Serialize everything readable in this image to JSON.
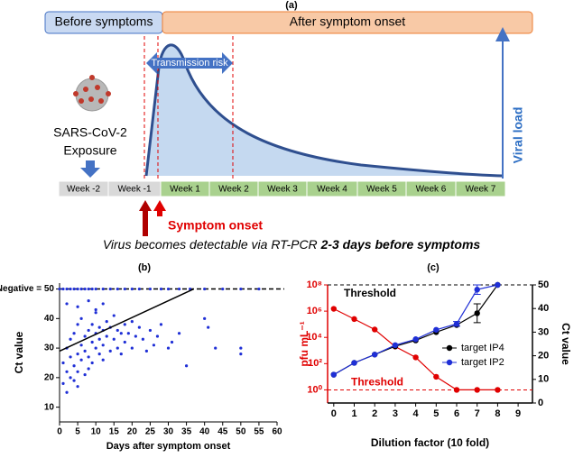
{
  "diagram": {
    "panel_label": "(a)",
    "before": "Before symptoms",
    "after": "After symptom onset",
    "transmission": "Transmission risk",
    "virus": "SARS-CoV-2",
    "exposure": "Exposure",
    "viral_load": "Viral load",
    "weeks": [
      "Week -2",
      "Week -1",
      "Week 1",
      "Week 2",
      "Week 3",
      "Week 4",
      "Week 5",
      "Week 6",
      "Week 7"
    ],
    "onset": "Symptom onset",
    "caption": "Virus becomes detectable via RT-PCR ",
    "caption_bold": "2-3 days before symptoms"
  },
  "chart_data": [
    {
      "type": "scatter",
      "title": "(b)",
      "xlabel": "Days after symptom onset",
      "ylabel": "Ct value",
      "xlim": [
        0,
        60
      ],
      "xticks": [
        0,
        5,
        10,
        15,
        20,
        25,
        30,
        35,
        40,
        45,
        50,
        55,
        60
      ],
      "ylim": [
        5,
        52
      ],
      "yticks": [
        10,
        20,
        30,
        40,
        {
          "value": 50,
          "label": "Negative = 50"
        }
      ],
      "hline": 50,
      "series": [
        {
          "color": "#1f2fd6",
          "x": [
            1,
            1,
            2,
            2,
            2,
            3,
            3,
            3,
            4,
            4,
            4,
            5,
            5,
            5,
            5,
            6,
            6,
            6,
            7,
            7,
            7,
            8,
            8,
            8,
            9,
            9,
            9,
            10,
            10,
            10,
            11,
            11,
            11,
            12,
            12,
            12,
            13,
            13,
            14,
            14,
            15,
            15,
            16,
            16,
            17,
            17,
            18,
            18,
            19,
            20,
            20,
            21,
            22,
            23,
            24,
            25,
            26,
            27,
            28,
            30,
            31,
            33,
            35,
            40,
            41,
            43,
            50,
            50,
            2,
            5,
            8,
            10,
            12
          ],
          "values": [
            18,
            25,
            22,
            30,
            15,
            27,
            20,
            33,
            24,
            35,
            19,
            28,
            38,
            22,
            17,
            31,
            26,
            40,
            29,
            34,
            21,
            36,
            27,
            23,
            32,
            38,
            25,
            35,
            30,
            42,
            33,
            28,
            37,
            36,
            31,
            26,
            34,
            39,
            29,
            37,
            33,
            41,
            30,
            36,
            35,
            28,
            32,
            38,
            35,
            30,
            39,
            34,
            37,
            33,
            29,
            36,
            31,
            34,
            38,
            30,
            32,
            35,
            24,
            40,
            37,
            30,
            30,
            28,
            45,
            44,
            46,
            43,
            45
          ]
        },
        {
          "color": "#1f2fd6",
          "x": [
            0,
            1,
            2,
            3,
            4,
            5,
            6,
            7,
            8,
            9,
            10,
            12,
            14,
            16,
            18,
            20,
            22,
            25,
            28,
            30,
            33,
            36,
            40,
            45,
            50,
            55
          ],
          "values": [
            50,
            50,
            50,
            50,
            50,
            50,
            50,
            50,
            50,
            50,
            50,
            50,
            50,
            50,
            50,
            50,
            50,
            50,
            50,
            50,
            50,
            50,
            50,
            50,
            50,
            50
          ]
        }
      ],
      "fit": {
        "color": "#000000",
        "x": [
          0,
          37
        ],
        "values": [
          29,
          50
        ]
      }
    },
    {
      "type": "dual",
      "title": "(c)",
      "xlabel": "Dilution factor (10 fold)",
      "ylabel": "pfu mL⁻¹",
      "y2label": "Ct value",
      "xlim": [
        -0.3,
        9.7
      ],
      "xticks": [
        0,
        1,
        2,
        3,
        4,
        5,
        6,
        7,
        8,
        9
      ],
      "ylim": [
        0.1,
        100000000
      ],
      "ylog": true,
      "yticks": [
        {
          "value": 1,
          "label": "10⁰"
        },
        {
          "value": 100,
          "label": "10²"
        },
        {
          "value": 10000,
          "label": "10⁴"
        },
        {
          "value": 1000000,
          "label": "10⁶"
        },
        {
          "value": 100000000,
          "label": "10⁸"
        }
      ],
      "y2lim": [
        0,
        50
      ],
      "y2ticks": [
        0,
        10,
        20,
        30,
        40,
        50
      ],
      "thresholds": [
        {
          "text": "Threshold",
          "axis": "y2",
          "value": 50,
          "color": "#000000"
        },
        {
          "text": "Threshold",
          "axis": "y",
          "value": 1,
          "color": "#e00000"
        }
      ],
      "series": [
        {
          "color": "#e00000",
          "x": [
            0,
            1,
            2,
            3,
            4,
            5,
            6,
            7,
            8
          ],
          "values": [
            1500000,
            250000,
            40000,
            2000,
            300,
            10,
            1,
            1,
            1
          ]
        },
        {
          "name": "target IP4",
          "axis": "y2",
          "color": "#000000",
          "x": [
            0,
            1,
            2,
            3,
            4,
            5,
            6,
            7,
            8
          ],
          "values": [
            12,
            17,
            20.5,
            24,
            26.5,
            30,
            33,
            38,
            50
          ],
          "errors": [
            null,
            null,
            null,
            null,
            null,
            null,
            null,
            4,
            null
          ]
        },
        {
          "name": "target IP2",
          "axis": "y2",
          "color": "#1f2fd6",
          "x": [
            0,
            1,
            2,
            3,
            4,
            5,
            6,
            7,
            8
          ],
          "values": [
            12,
            17,
            20.5,
            24.5,
            27,
            31,
            33.5,
            48,
            50
          ],
          "errors": [
            null,
            null,
            null,
            null,
            null,
            null,
            1,
            2,
            null
          ]
        }
      ]
    }
  ]
}
